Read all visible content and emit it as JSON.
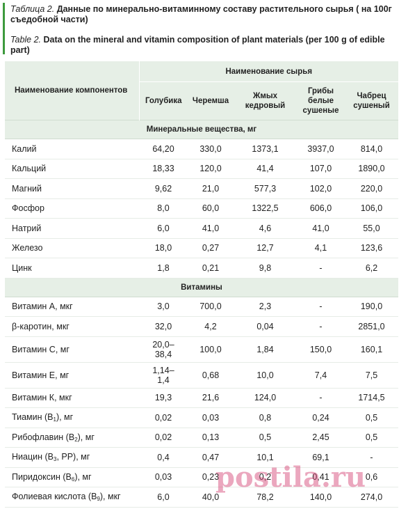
{
  "caption": {
    "ru_label": "Таблица 2.",
    "ru_text": "Данные по минерально-витаминному составу растительного сырья ( на 100г съедобной части)",
    "en_label": "Table 2.",
    "en_text": "Data on the mineral and vitamin composition of plant materials (per 100 g of edible part)",
    "accent_color": "#3d9a3d"
  },
  "table": {
    "row_header": "Наименование компонентов",
    "group_header": "Наименование сырья",
    "columns": [
      [
        "Голубика"
      ],
      [
        "Черемша"
      ],
      [
        "Жмых",
        "кедровый"
      ],
      [
        "Грибы",
        "белые",
        "сушеные"
      ],
      [
        "Чабрец",
        "сушеный"
      ]
    ],
    "sections": [
      {
        "title": "Минеральные вещества, мг",
        "rows": [
          {
            "name": "Калий",
            "values": [
              "64,20",
              "330,0",
              "1373,1",
              "3937,0",
              "814,0"
            ]
          },
          {
            "name": "Кальций",
            "values": [
              "18,33",
              "120,0",
              "41,4",
              "107,0",
              "1890,0"
            ]
          },
          {
            "name": "Магний",
            "values": [
              "9,62",
              "21,0",
              "577,3",
              "102,0",
              "220,0"
            ]
          },
          {
            "name": "Фосфор",
            "values": [
              "8,0",
              "60,0",
              "1322,5",
              "606,0",
              "106,0"
            ]
          },
          {
            "name": "Натрий",
            "values": [
              "6,0",
              "41,0",
              "4,6",
              "41,0",
              "55,0"
            ]
          },
          {
            "name": "Железо",
            "values": [
              "18,0",
              "0,27",
              "12,7",
              "4,1",
              "123,6"
            ]
          },
          {
            "name": "Цинк",
            "values": [
              "1,8",
              "0,21",
              "9,8",
              "-",
              "6,2"
            ]
          }
        ]
      },
      {
        "title": "Витамины",
        "rows": [
          {
            "name": "Витамин А, мкг",
            "values": [
              "3,0",
              "700,0",
              "2,3",
              "-",
              "190,0"
            ]
          },
          {
            "name": "β-каротин, мкг",
            "values": [
              "32,0",
              "4,2",
              "0,04",
              "-",
              "2851,0"
            ]
          },
          {
            "name": "Витамин С, мг",
            "values": [
              "20,0–\n38,4",
              "100,0",
              "1,84",
              "150,0",
              "160,1"
            ]
          },
          {
            "name": "Витамин Е, мг",
            "values": [
              "1,14–\n1,4",
              "0,68",
              "10,0",
              "7,4",
              "7,5"
            ]
          },
          {
            "name": "Витамин К, мкг",
            "values": [
              "19,3",
              "21,6",
              "124,0",
              "-",
              "1714,5"
            ]
          },
          {
            "name": "Тиамин (B",
            "sub": "1",
            "suffix": "), мг",
            "values": [
              "0,02",
              "0,03",
              "0,8",
              "0,24",
              "0,5"
            ]
          },
          {
            "name": "Рибофлавин (B",
            "sub": "2",
            "suffix": "), мг",
            "values": [
              "0,02",
              "0,13",
              "0,5",
              "2,45",
              "0,5"
            ]
          },
          {
            "name": "Ниацин (B",
            "sub": "3",
            "suffix": ", РР), мг",
            "values": [
              "0,4",
              "0,47",
              "10,1",
              "69,1",
              "-"
            ]
          },
          {
            "name": "Пиридоксин (B",
            "sub": "6",
            "suffix": "), мг",
            "values": [
              "0,03",
              "0,23",
              "0,2",
              "0,41",
              "0,6"
            ]
          },
          {
            "name": "Фолиевая кислота (B",
            "sub": "9",
            "suffix": "), мкг",
            "values": [
              "6,0",
              "40,0",
              "78,2",
              "140,0",
              "274,0"
            ]
          }
        ]
      }
    ]
  },
  "watermark": "postila.ru"
}
